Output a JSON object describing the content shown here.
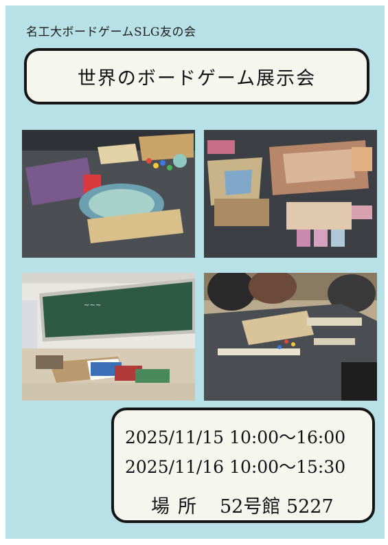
{
  "club_name": "名工大ボードゲームSLG友の会",
  "title": "世界のボードゲーム展示会",
  "photos": [
    {
      "icon": "board-game-photo-icon"
    },
    {
      "icon": "board-game-photo-icon"
    },
    {
      "icon": "classroom-photo-icon"
    },
    {
      "icon": "players-photo-icon"
    }
  ],
  "schedule": {
    "day1": "2025/11/15 10:00～16:00",
    "day2": "2025/11/16 10:00～15:30"
  },
  "venue": {
    "label": "場所",
    "value": "52号館 5227"
  },
  "colors": {
    "background": "#b8e1e7",
    "box_fill": "#f5f7ee",
    "border": "#151515"
  }
}
